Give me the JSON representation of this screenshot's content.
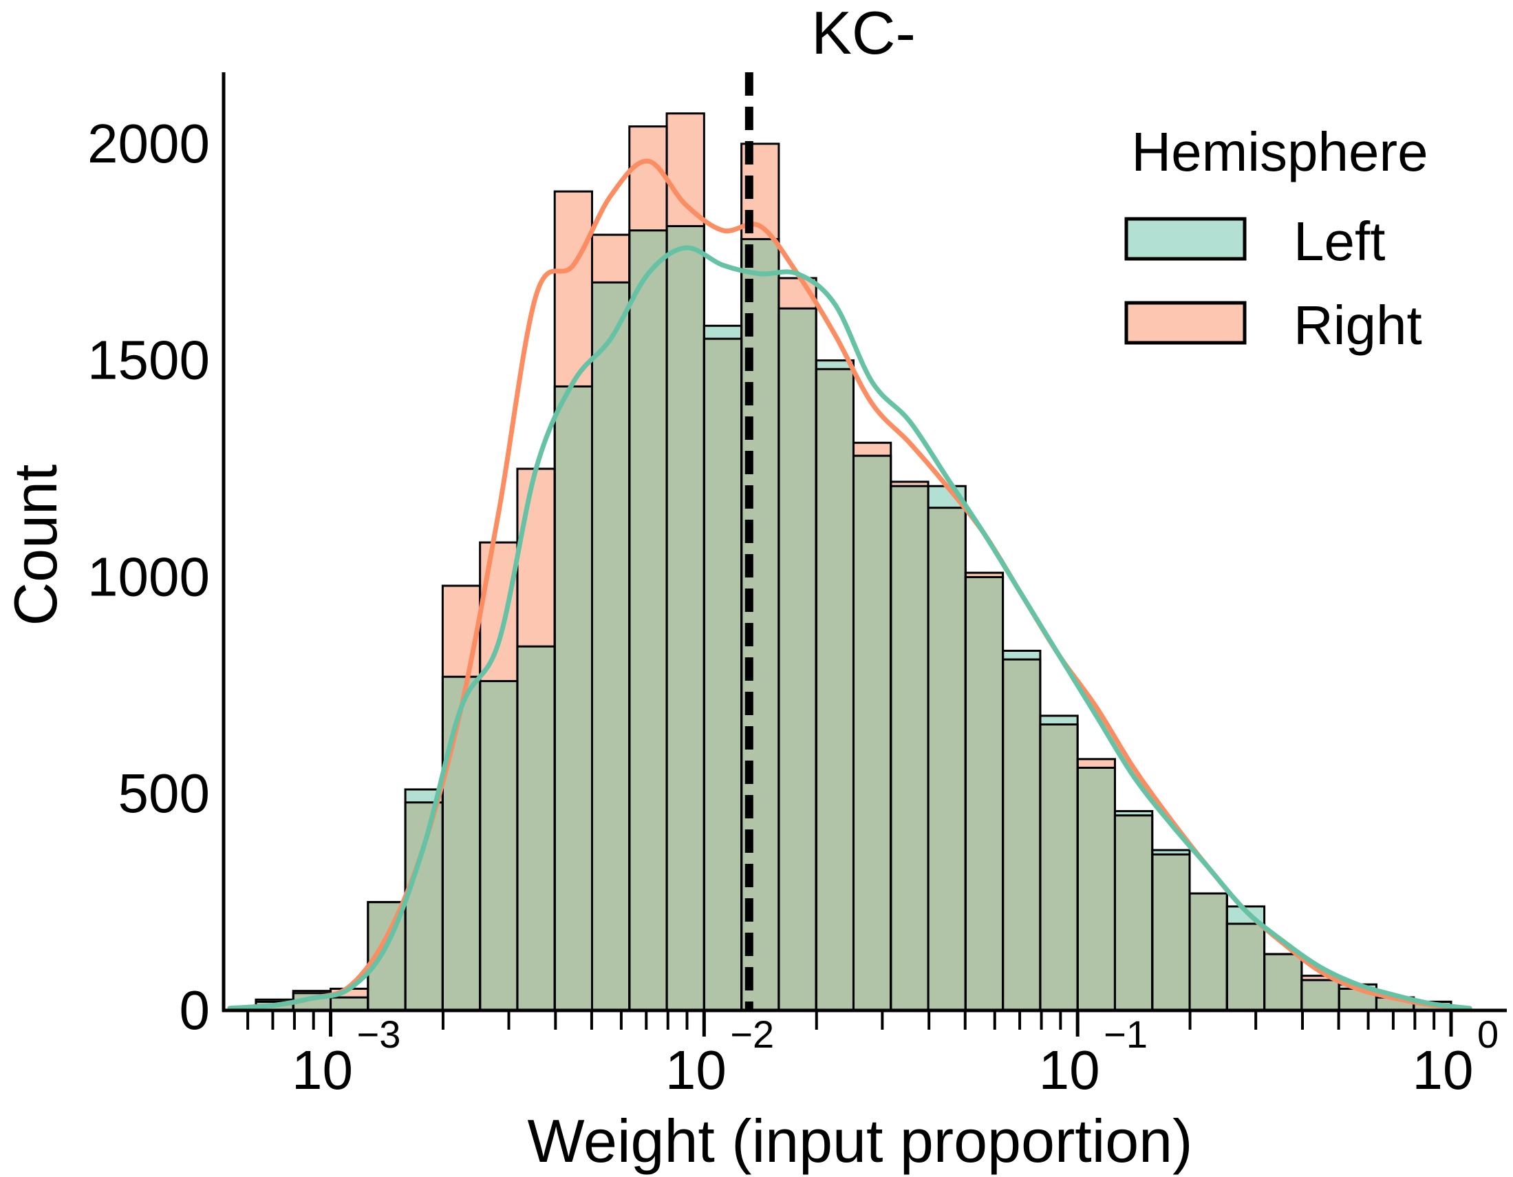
{
  "chart_data": {
    "type": "histogram",
    "title": "KC-",
    "xlabel": "Weight (input proportion)",
    "ylabel": "Count",
    "x_scale": "log",
    "xlim": [
      0.000517,
      1.41
    ],
    "ylim": [
      0,
      2165
    ],
    "yticks": [
      0,
      500,
      1000,
      1500,
      2000
    ],
    "xticks": [
      {
        "value": 0.001,
        "base": "10",
        "exp": "−3"
      },
      {
        "value": 0.01,
        "base": "10",
        "exp": "−2"
      },
      {
        "value": 0.1,
        "base": "10",
        "exp": "−1"
      },
      {
        "value": 1,
        "base": "10",
        "exp": "0"
      }
    ],
    "reference_line": {
      "value": 0.0132,
      "style": "dashed",
      "color": "#000000"
    },
    "bin_edges_log10": [
      -3.2,
      -3.1,
      -3.0,
      -2.9,
      -2.8,
      -2.7,
      -2.6,
      -2.5,
      -2.4,
      -2.3,
      -2.2,
      -2.1,
      -2.0,
      -1.9,
      -1.8,
      -1.7,
      -1.6,
      -1.5,
      -1.4,
      -1.3,
      -1.2,
      -1.1,
      -1.0,
      -0.9,
      -0.8,
      -0.7,
      -0.6,
      -0.5,
      -0.4,
      -0.3,
      -0.2,
      -0.1,
      0.0
    ],
    "series": [
      {
        "name": "Left",
        "color": "#66c2a5",
        "fill": "#b2e0d2",
        "counts": [
          25,
          40,
          30,
          250,
          510,
          770,
          760,
          840,
          1440,
          1680,
          1800,
          1810,
          1580,
          1780,
          1620,
          1500,
          1280,
          1210,
          1210,
          1000,
          830,
          680,
          560,
          460,
          370,
          270,
          240,
          130,
          70,
          60,
          30,
          20
        ]
      },
      {
        "name": "Right",
        "color": "#fc8d62",
        "fill": "#fcc6b0",
        "counts": [
          20,
          45,
          50,
          250,
          480,
          980,
          1080,
          1250,
          1890,
          1790,
          2040,
          2070,
          1550,
          2000,
          1690,
          1480,
          1310,
          1220,
          1160,
          1010,
          810,
          660,
          580,
          450,
          360,
          270,
          200,
          130,
          80,
          50,
          30,
          20
        ]
      }
    ],
    "kde": [
      {
        "name": "Left",
        "color": "#66c2a5",
        "points": [
          [
            -3.27,
            5
          ],
          [
            -3.15,
            12
          ],
          [
            -3.05,
            28
          ],
          [
            -2.95,
            50
          ],
          [
            -2.85,
            150
          ],
          [
            -2.75,
            380
          ],
          [
            -2.65,
            700
          ],
          [
            -2.55,
            850
          ],
          [
            -2.45,
            1250
          ],
          [
            -2.35,
            1450
          ],
          [
            -2.25,
            1550
          ],
          [
            -2.15,
            1700
          ],
          [
            -2.05,
            1760
          ],
          [
            -1.95,
            1720
          ],
          [
            -1.85,
            1700
          ],
          [
            -1.75,
            1700
          ],
          [
            -1.65,
            1630
          ],
          [
            -1.55,
            1450
          ],
          [
            -1.45,
            1360
          ],
          [
            -1.35,
            1230
          ],
          [
            -1.25,
            1100
          ],
          [
            -1.15,
            960
          ],
          [
            -1.05,
            820
          ],
          [
            -0.95,
            680
          ],
          [
            -0.85,
            540
          ],
          [
            -0.75,
            430
          ],
          [
            -0.65,
            330
          ],
          [
            -0.55,
            230
          ],
          [
            -0.45,
            160
          ],
          [
            -0.35,
            100
          ],
          [
            -0.25,
            60
          ],
          [
            -0.15,
            35
          ],
          [
            -0.05,
            15
          ],
          [
            0.05,
            5
          ]
        ]
      },
      {
        "name": "Right",
        "color": "#fc8d62",
        "points": [
          [
            -3.27,
            5
          ],
          [
            -3.15,
            12
          ],
          [
            -3.05,
            28
          ],
          [
            -2.95,
            55
          ],
          [
            -2.85,
            170
          ],
          [
            -2.75,
            380
          ],
          [
            -2.65,
            700
          ],
          [
            -2.55,
            1150
          ],
          [
            -2.45,
            1650
          ],
          [
            -2.35,
            1720
          ],
          [
            -2.25,
            1880
          ],
          [
            -2.15,
            1960
          ],
          [
            -2.05,
            1860
          ],
          [
            -1.95,
            1800
          ],
          [
            -1.85,
            1810
          ],
          [
            -1.75,
            1700
          ],
          [
            -1.65,
            1560
          ],
          [
            -1.55,
            1400
          ],
          [
            -1.45,
            1310
          ],
          [
            -1.35,
            1210
          ],
          [
            -1.25,
            1100
          ],
          [
            -1.15,
            960
          ],
          [
            -1.05,
            820
          ],
          [
            -0.95,
            700
          ],
          [
            -0.85,
            560
          ],
          [
            -0.75,
            440
          ],
          [
            -0.65,
            330
          ],
          [
            -0.55,
            230
          ],
          [
            -0.45,
            155
          ],
          [
            -0.35,
            90
          ],
          [
            -0.25,
            50
          ],
          [
            -0.15,
            28
          ],
          [
            -0.05,
            12
          ],
          [
            0.05,
            4
          ]
        ]
      }
    ],
    "overlap_fill": "#b1c4a7",
    "legend": {
      "title": "Hemisphere",
      "placement": "top-right",
      "entries": [
        "Left",
        "Right"
      ]
    }
  }
}
